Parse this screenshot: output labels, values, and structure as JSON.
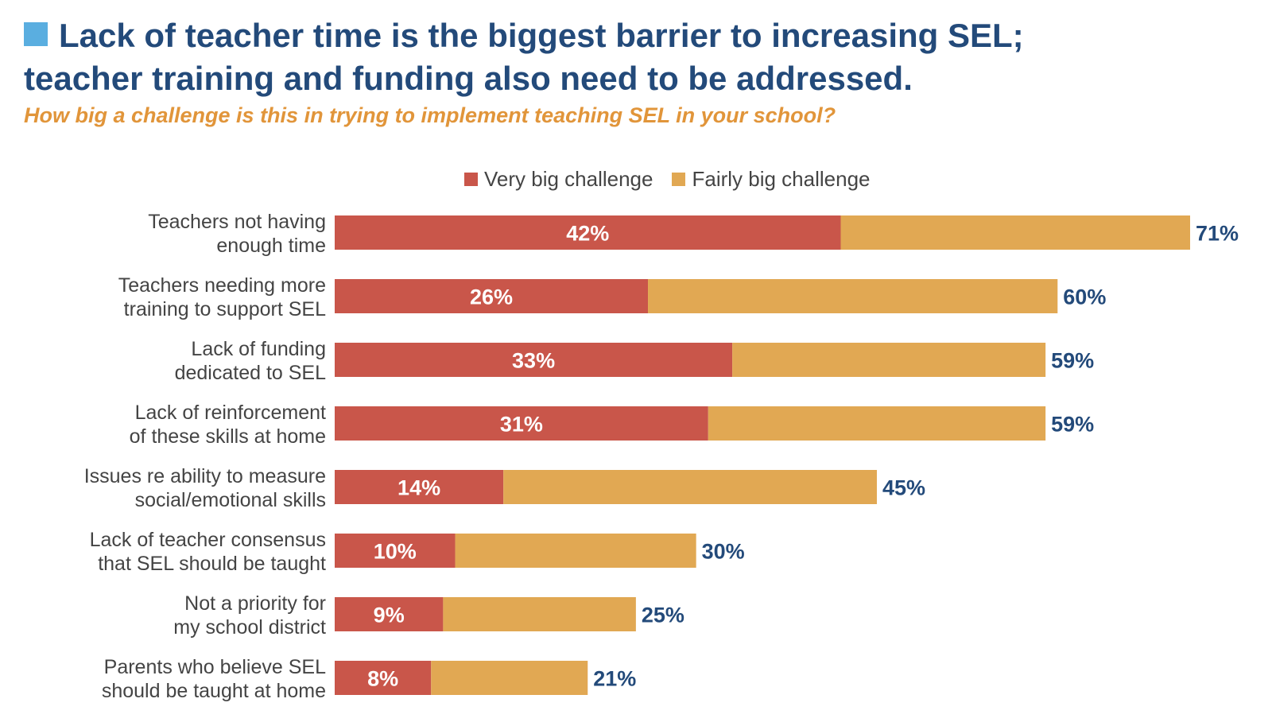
{
  "header": {
    "title_line1": "Lack of teacher time is the biggest barrier to increasing SEL;",
    "title_line2": "teacher training and funding also need to be addressed.",
    "subtitle": "How big a challenge is this in trying to implement teaching SEL in your school?"
  },
  "colors": {
    "very_big": "#c9564a",
    "fairly_big": "#e1a853",
    "title": "#234a7a",
    "subtitle": "#e1953a",
    "accent_square": "#5aaee0"
  },
  "chart_data": {
    "type": "bar",
    "orientation": "horizontal",
    "stacked": true,
    "title": "Lack of teacher time is the biggest barrier to increasing SEL; teacher training and funding also need to be addressed.",
    "subtitle": "How big a challenge is this in trying to implement teaching SEL in your school?",
    "categories": [
      "Teachers not having\nenough time",
      "Teachers needing more\ntraining to support SEL",
      "Lack of funding\ndedicated to SEL",
      "Lack of reinforcement\nof these skills at home",
      "Issues re ability to measure\nsocial/emotional skills",
      "Lack of teacher consensus\nthat SEL should be taught",
      "Not a priority for\nmy school district",
      "Parents who believe SEL\nshould be taught at home"
    ],
    "series": [
      {
        "name": "Very big challenge",
        "values": [
          42,
          26,
          33,
          31,
          14,
          10,
          9,
          8
        ]
      },
      {
        "name": "Fairly big challenge",
        "values": [
          29,
          34,
          26,
          28,
          31,
          20,
          16,
          13
        ]
      }
    ],
    "very_big_labels": [
      "42%",
      "26%",
      "33%",
      "31%",
      "14%",
      "10%",
      "9%",
      "8%"
    ],
    "totals": [
      71,
      60,
      59,
      59,
      45,
      30,
      25,
      21
    ],
    "total_labels": [
      "71%",
      "60%",
      "59%",
      "59%",
      "45%",
      "30%",
      "25%",
      "21%"
    ],
    "xlim": [
      0,
      71
    ],
    "legend_position": "top",
    "grid": false
  }
}
